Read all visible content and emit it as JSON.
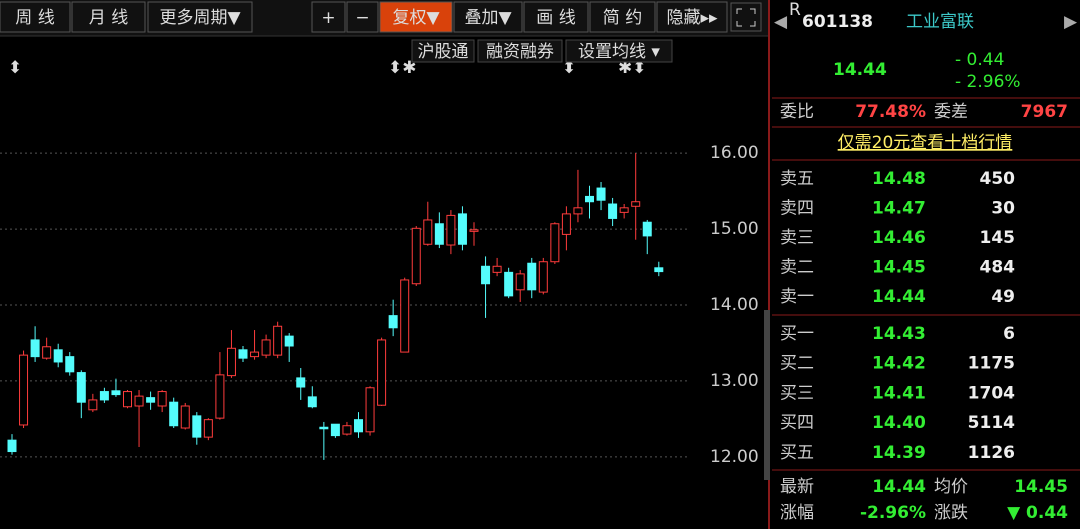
{
  "toolbar": {
    "buttons": [
      "周 线",
      "月 线",
      "更多周期▼",
      "+",
      "−",
      "复权▼",
      "叠加▼",
      "画 线",
      "简 约",
      "隐藏▸▸"
    ],
    "sub_buttons": [
      "沪股通",
      "融资融券",
      "设置均线 ▾"
    ]
  },
  "quote": {
    "code_prefix": "R",
    "code": "601138",
    "name": "工业富联",
    "price": "14.44",
    "change": "- 0.44",
    "change_pct": "- 2.96%",
    "weibi_label": "委比",
    "weibi": "77.48%",
    "weicha_label": "委差",
    "weicha": "7967",
    "promo": "仅需20元查看十档行情",
    "asks": [
      [
        "卖五",
        "14.48",
        "450"
      ],
      [
        "卖四",
        "14.47",
        "30"
      ],
      [
        "卖三",
        "14.46",
        "145"
      ],
      [
        "卖二",
        "14.45",
        "484"
      ],
      [
        "卖一",
        "14.44",
        "49"
      ]
    ],
    "bids": [
      [
        "买一",
        "14.43",
        "6"
      ],
      [
        "买二",
        "14.42",
        "1175"
      ],
      [
        "买三",
        "14.41",
        "1704"
      ],
      [
        "买四",
        "14.40",
        "5114"
      ],
      [
        "买五",
        "14.39",
        "1126"
      ]
    ],
    "footer": [
      [
        "最新",
        "14.44",
        "均价",
        "14.45"
      ],
      [
        "涨幅",
        "-2.96%",
        "涨跌",
        "▼ 0.44"
      ]
    ]
  },
  "chart_data": {
    "type": "candlestick",
    "open": [
      12.22,
      12.42,
      13.54,
      13.3,
      13.41,
      13.32,
      13.11,
      12.62,
      12.86,
      12.87,
      12.66,
      12.67,
      12.78,
      12.67,
      12.72,
      12.38,
      12.54,
      12.26,
      12.51,
      13.07,
      13.41,
      13.32,
      13.34,
      13.34,
      13.59,
      13.04,
      12.79,
      12.39,
      12.43,
      12.3,
      12.49,
      12.33,
      12.68,
      13.86,
      13.38,
      14.28,
      14.8,
      15.07,
      14.79,
      15.2,
      14.97,
      14.51,
      14.43,
      14.43,
      14.2,
      14.55,
      14.17,
      14.57,
      14.93,
      15.2,
      15.43,
      15.54,
      15.33,
      15.22,
      15.3,
      15.09,
      14.49
    ],
    "high": [
      12.3,
      13.4,
      13.72,
      13.57,
      13.49,
      13.38,
      13.14,
      12.83,
      12.91,
      13.03,
      12.88,
      12.88,
      12.86,
      12.88,
      12.78,
      12.71,
      12.59,
      12.51,
      13.38,
      13.67,
      13.46,
      13.67,
      13.61,
      13.78,
      13.63,
      13.17,
      12.93,
      12.46,
      12.43,
      12.46,
      12.59,
      12.93,
      13.57,
      14.07,
      14.36,
      15.04,
      15.36,
      15.22,
      15.25,
      15.3,
      15.09,
      14.64,
      14.62,
      14.49,
      14.46,
      14.62,
      14.62,
      15.09,
      15.3,
      15.78,
      15.57,
      15.62,
      15.41,
      15.33,
      16.0,
      15.12,
      14.57
    ],
    "low": [
      12.03,
      12.38,
      13.25,
      13.28,
      13.18,
      13.07,
      12.51,
      12.59,
      12.71,
      12.79,
      12.64,
      12.13,
      12.62,
      12.59,
      12.38,
      12.36,
      12.16,
      12.22,
      12.49,
      13.04,
      13.25,
      13.28,
      13.3,
      13.3,
      13.25,
      12.75,
      12.64,
      11.96,
      12.25,
      12.28,
      12.25,
      12.28,
      12.67,
      13.59,
      13.38,
      14.25,
      14.78,
      14.75,
      14.67,
      14.72,
      14.78,
      13.83,
      14.38,
      14.09,
      14.04,
      14.09,
      14.14,
      14.54,
      14.72,
      15.09,
      15.14,
      15.25,
      15.04,
      15.14,
      14.86,
      14.67,
      14.38
    ],
    "close": [
      12.07,
      13.34,
      13.32,
      13.45,
      13.25,
      13.12,
      12.72,
      12.75,
      12.75,
      12.82,
      12.86,
      12.8,
      12.72,
      12.86,
      12.41,
      12.67,
      12.26,
      12.49,
      13.08,
      13.43,
      13.3,
      13.38,
      13.54,
      13.72,
      13.46,
      12.92,
      12.66,
      12.37,
      12.28,
      12.41,
      12.33,
      12.91,
      13.54,
      13.7,
      14.33,
      15.01,
      15.12,
      14.8,
      15.18,
      14.8,
      14.99,
      14.28,
      14.51,
      14.12,
      14.41,
      14.2,
      14.57,
      15.07,
      15.2,
      15.28,
      15.36,
      15.38,
      15.14,
      15.28,
      15.36,
      14.91,
      14.44
    ],
    "ylim": [
      11.05,
      17.49
    ],
    "yticks": [
      {
        "value": 12,
        "label": "12.00"
      },
      {
        "value": 13,
        "label": "13.00"
      },
      {
        "value": 14,
        "label": "14.00"
      },
      {
        "value": 15,
        "label": "15.00"
      },
      {
        "value": 16,
        "label": "16.00"
      }
    ],
    "grid": true,
    "up_color": "#ff3c3c",
    "down_color": "#54fcfc"
  }
}
